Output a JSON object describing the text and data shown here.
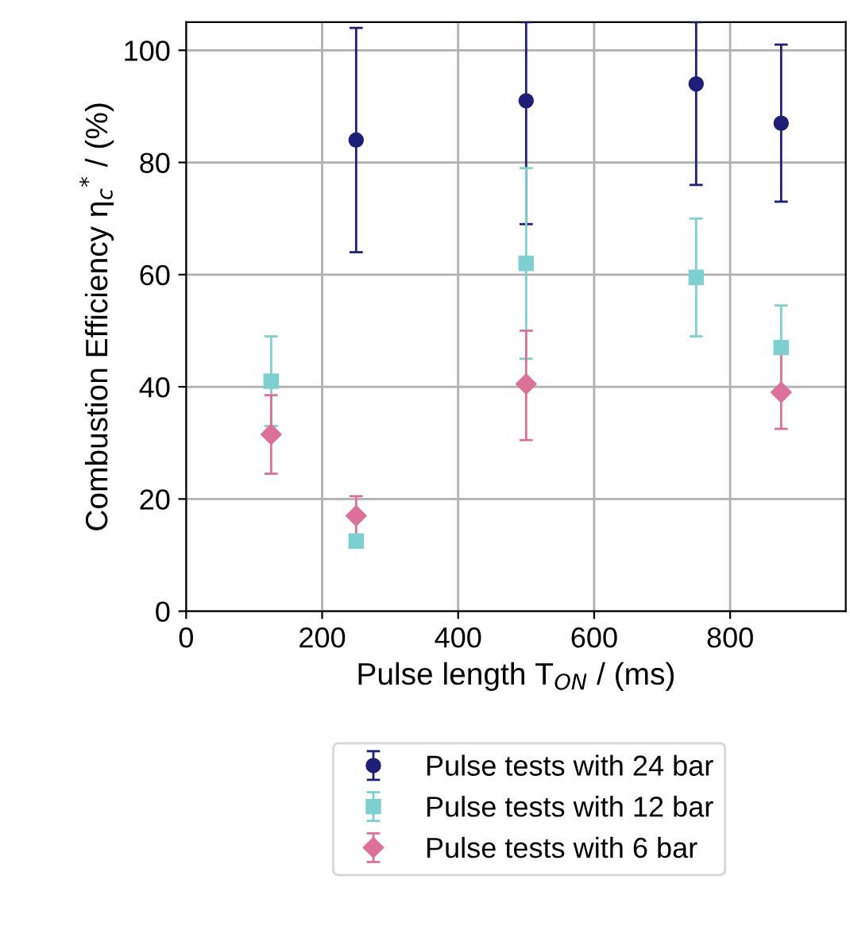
{
  "chart_data": {
    "type": "scatter",
    "xlabel": "Pulse length T$_{ON}$ / (ms)",
    "ylabel": "Combustion Efficiency η$_{c}$$^{*}$ / (%)",
    "xlim": [
      0,
      970
    ],
    "ylim": [
      0,
      105
    ],
    "xticks": [
      0,
      200,
      400,
      600,
      800
    ],
    "yticks": [
      0,
      20,
      40,
      60,
      80,
      100
    ],
    "grid": true,
    "legend": "bottom",
    "series": [
      {
        "name": "Pulse tests with 24 bar",
        "color": "#1f1f78",
        "marker": "circle",
        "x": [
          250,
          500,
          750,
          875
        ],
        "values": [
          84,
          91,
          94,
          87
        ],
        "errors": [
          [
            64,
            104
          ],
          [
            69,
            105
          ],
          [
            76,
            105
          ],
          [
            73,
            101
          ]
        ]
      },
      {
        "name": "Pulse tests with 12 bar",
        "color": "#7ecfcf",
        "marker": "square",
        "x": [
          125,
          250,
          500,
          750,
          875
        ],
        "values": [
          41,
          12.5,
          62,
          59.5,
          47
        ],
        "errors": [
          [
            33,
            49
          ],
          null,
          [
            45,
            79
          ],
          [
            49,
            70
          ],
          [
            40,
            54.5
          ]
        ]
      },
      {
        "name": "Pulse tests with 6 bar",
        "color": "#db7099",
        "marker": "diamond",
        "x": [
          125,
          250,
          500,
          875
        ],
        "values": [
          31.5,
          17,
          40.5,
          39
        ],
        "errors": [
          [
            24.5,
            38.5
          ],
          [
            13.5,
            20.5
          ],
          [
            30.5,
            50
          ],
          [
            32.5,
            46
          ]
        ]
      }
    ]
  }
}
